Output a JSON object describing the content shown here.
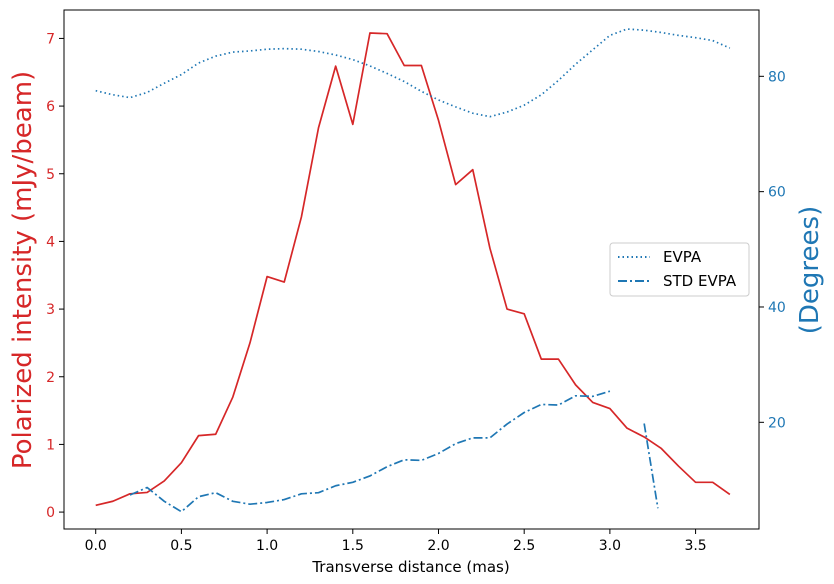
{
  "chart_data": {
    "type": "line",
    "xlabel": "Transverse distance (mas)",
    "ylabel_left": "Polarized intensity (mJy/beam)",
    "ylabel_right": "(Degrees)",
    "xlim": [
      -0.185,
      3.87
    ],
    "ylim_left": [
      -0.25,
      7.42
    ],
    "ylim_right": [
      1.5,
      91.5
    ],
    "x_ticks": [
      0.0,
      0.5,
      1.0,
      1.5,
      2.0,
      2.5,
      3.0,
      3.5
    ],
    "x_tick_labels": [
      "0.0",
      "0.5",
      "1.0",
      "1.5",
      "2.0",
      "2.5",
      "3.0",
      "3.5"
    ],
    "y_left_ticks": [
      0,
      1,
      2,
      3,
      4,
      5,
      6,
      7
    ],
    "y_left_tick_labels": [
      "0",
      "1",
      "2",
      "3",
      "4",
      "5",
      "6",
      "7"
    ],
    "y_right_ticks": [
      20,
      40,
      60,
      80
    ],
    "y_right_tick_labels": [
      "20",
      "40",
      "60",
      "80"
    ],
    "legend_position": "center-right",
    "colors": {
      "left_axis": "#d62728",
      "right_axis": "#1f77b4",
      "intensity": "#d62728",
      "evpa": "#1f77b4",
      "std_evpa": "#1f77b4"
    },
    "series": [
      {
        "axis": "left",
        "style": "solid",
        "x": [
          0.0,
          0.1,
          0.2,
          0.3,
          0.4,
          0.5,
          0.6,
          0.7,
          0.8,
          0.9,
          1.0,
          1.1,
          1.2,
          1.3,
          1.4,
          1.5,
          1.6,
          1.7,
          1.8,
          1.9,
          2.0,
          2.1,
          2.2,
          2.3,
          2.4,
          2.5,
          2.6,
          2.7,
          2.8,
          2.9,
          3.0,
          3.1,
          3.2,
          3.3,
          3.4,
          3.5,
          3.6,
          3.7
        ],
        "y": [
          0.1,
          0.16,
          0.27,
          0.29,
          0.46,
          0.73,
          1.13,
          1.15,
          1.7,
          2.5,
          3.48,
          3.4,
          4.36,
          5.68,
          6.59,
          5.73,
          7.08,
          7.07,
          6.6,
          6.6,
          5.79,
          4.84,
          5.06,
          3.9,
          3.0,
          2.93,
          2.26,
          2.26,
          1.88,
          1.62,
          1.53,
          1.24,
          1.11,
          0.94,
          0.68,
          0.44,
          0.44,
          0.26
        ]
      },
      {
        "name": "EVPA",
        "axis": "right",
        "style": "dotted",
        "x": [
          0.0,
          0.1,
          0.2,
          0.3,
          0.4,
          0.5,
          0.6,
          0.7,
          0.8,
          0.9,
          1.0,
          1.1,
          1.2,
          1.3,
          1.4,
          1.5,
          1.6,
          1.7,
          1.8,
          1.9,
          2.0,
          2.1,
          2.2,
          2.3,
          2.4,
          2.5,
          2.6,
          2.7,
          2.8,
          2.9,
          3.0,
          3.1,
          3.2,
          3.3,
          3.4,
          3.5,
          3.6,
          3.7
        ],
        "y": [
          77.5,
          76.8,
          76.3,
          77.2,
          78.8,
          80.3,
          82.3,
          83.5,
          84.2,
          84.4,
          84.7,
          84.8,
          84.7,
          84.3,
          83.7,
          82.9,
          81.8,
          80.5,
          79.1,
          77.4,
          75.9,
          74.7,
          73.6,
          73.0,
          73.8,
          75.0,
          76.8,
          79.3,
          82.1,
          84.6,
          87.1,
          88.2,
          88.0,
          87.6,
          87.1,
          86.7,
          86.2,
          84.9
        ]
      },
      {
        "name": "STD EVPA",
        "axis": "right",
        "style": "dashdot",
        "segments": [
          {
            "x": [
              0.2,
              0.3,
              0.4,
              0.5,
              0.6,
              0.7,
              0.8,
              0.9,
              1.0,
              1.1,
              1.2,
              1.3,
              1.4,
              1.5,
              1.6,
              1.7,
              1.8,
              1.9,
              2.0,
              2.1,
              2.2,
              2.3,
              2.4,
              2.5,
              2.6,
              2.7,
              2.8,
              2.9,
              3.0
            ],
            "y": [
              7.4,
              8.7,
              6.3,
              4.5,
              7.1,
              7.8,
              6.3,
              5.8,
              6.1,
              6.6,
              7.6,
              7.8,
              9.0,
              9.6,
              10.7,
              12.3,
              13.5,
              13.4,
              14.6,
              16.3,
              17.3,
              17.3,
              19.7,
              21.7,
              23.1,
              23.0,
              24.6,
              24.5,
              25.4
            ]
          },
          {
            "x": [
              3.2,
              3.28
            ],
            "y": [
              19.8,
              5.1
            ]
          }
        ]
      }
    ]
  }
}
